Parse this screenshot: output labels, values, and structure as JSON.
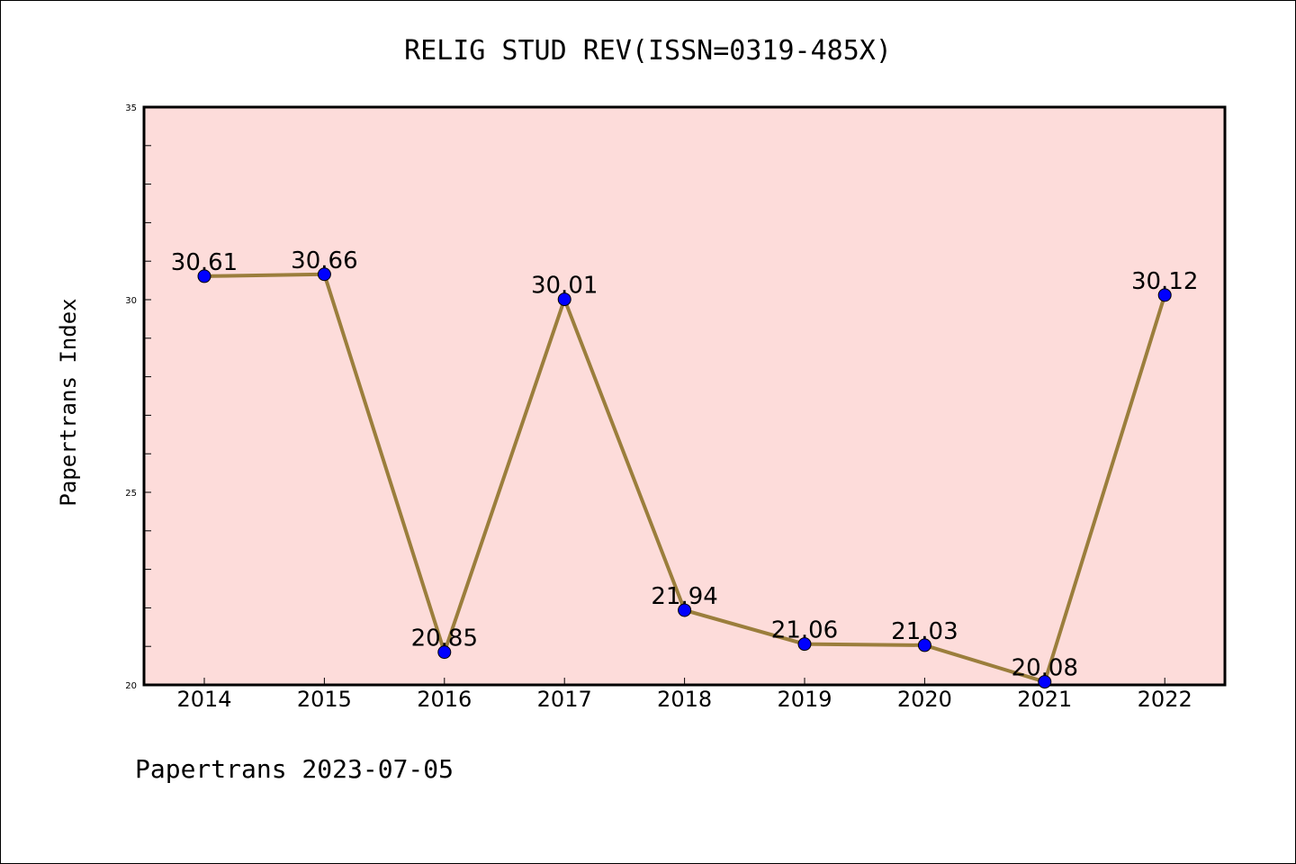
{
  "chart_data": {
    "type": "line",
    "title": "RELIG STUD REV(ISSN=0319-485X)",
    "ylabel": "Papertrans Index",
    "xlabel": "",
    "categories": [
      "2014",
      "2015",
      "2016",
      "2017",
      "2018",
      "2019",
      "2020",
      "2021",
      "2022"
    ],
    "values": [
      30.61,
      30.66,
      20.85,
      30.01,
      21.94,
      21.06,
      21.03,
      20.08,
      30.12
    ],
    "data_labels": [
      "30.61",
      "30.66",
      "20.85",
      "30.01",
      "21.94",
      "21.06",
      "21.03",
      "20.08",
      "30.12"
    ],
    "ylim": [
      20,
      35
    ],
    "yticks": [
      "20",
      "25",
      "30",
      "35"
    ],
    "grid": false,
    "colors": {
      "plot_background": "#FDDCDA",
      "line": "#9B7E3C",
      "marker": "#0000FF"
    },
    "footer": "Papertrans 2023-07-05"
  }
}
